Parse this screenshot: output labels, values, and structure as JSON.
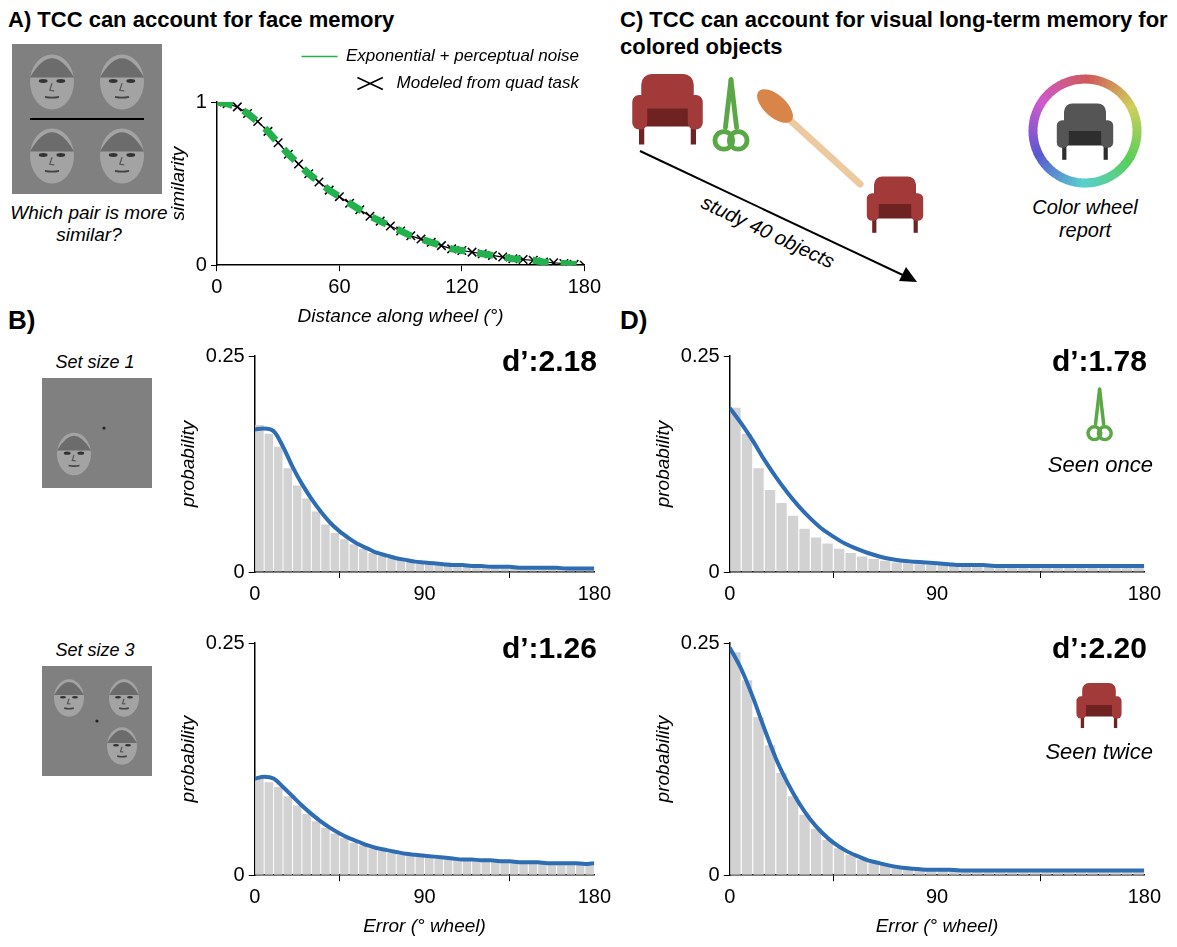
{
  "figure": {
    "A": {
      "label": "A)",
      "title": "TCC can account for face memory",
      "caption": "Which pair is more similar?"
    },
    "B": {
      "label": "B)"
    },
    "C": {
      "label": "C)",
      "title": "TCC can account for visual long-term memory for colored objects",
      "arrow_label": "study 40 objects",
      "report_label": "Color wheel report"
    },
    "D": {
      "label": "D)"
    }
  },
  "chart_data": [
    {
      "type": "line",
      "x": [
        0,
        5,
        10,
        15,
        20,
        25,
        30,
        35,
        40,
        45,
        50,
        55,
        60,
        65,
        70,
        75,
        80,
        85,
        90,
        95,
        100,
        105,
        110,
        115,
        120,
        125,
        130,
        135,
        140,
        145,
        150,
        155,
        160,
        165,
        170,
        175,
        180
      ],
      "series": [
        {
          "name": "Exponential + perceptual noise",
          "color": "#22b14c",
          "line_style": "dashed",
          "marker": "none",
          "values": [
            1,
            0.99,
            0.97,
            0.93,
            0.88,
            0.82,
            0.75,
            0.68,
            0.62,
            0.56,
            0.51,
            0.46,
            0.42,
            0.38,
            0.34,
            0.3,
            0.27,
            0.24,
            0.21,
            0.18,
            0.16,
            0.14,
            0.12,
            0.1,
            0.09,
            0.08,
            0.07,
            0.06,
            0.05,
            0.04,
            0.035,
            0.03,
            0.02,
            0.015,
            0.01,
            0.005,
            0
          ]
        },
        {
          "name": "Modeled from quad task",
          "color": "#000000",
          "line_style": "solid",
          "marker": "x",
          "values": [
            1,
            0.99,
            0.97,
            0.93,
            0.88,
            0.82,
            0.75,
            0.68,
            0.62,
            0.56,
            0.51,
            0.46,
            0.42,
            0.38,
            0.34,
            0.3,
            0.27,
            0.24,
            0.21,
            0.18,
            0.16,
            0.14,
            0.12,
            0.1,
            0.09,
            0.08,
            0.07,
            0.06,
            0.05,
            0.04,
            0.035,
            0.03,
            0.02,
            0.015,
            0.01,
            0.005,
            0
          ]
        }
      ],
      "x_label": "Distance along wheel (°)",
      "y_label": "similarity",
      "xlim": [
        0,
        180
      ],
      "xticks": [
        0,
        60,
        120,
        180
      ],
      "ylim": [
        0,
        1
      ],
      "yticks": [
        0,
        1
      ],
      "grid": false,
      "legend": "top"
    },
    {
      "type": "histogram",
      "annotation": "d’:2.18",
      "condition": "Set size 1",
      "bins": [
        0,
        5,
        10,
        15,
        20,
        25,
        30,
        35,
        40,
        45,
        50,
        55,
        60,
        65,
        70,
        75,
        80,
        85,
        90,
        95,
        100,
        105,
        110,
        115,
        120,
        125,
        130,
        135,
        140,
        145,
        150,
        155,
        160,
        165,
        170,
        175,
        180
      ],
      "counts": [
        0.17,
        0.16,
        0.145,
        0.12,
        0.1,
        0.085,
        0.07,
        0.055,
        0.045,
        0.038,
        0.032,
        0.027,
        0.022,
        0.019,
        0.016,
        0.014,
        0.012,
        0.011,
        0.01,
        0.009,
        0.008,
        0.008,
        0.007,
        0.007,
        0.006,
        0.006,
        0.006,
        0.005,
        0.005,
        0.005,
        0.005,
        0.004,
        0.004,
        0.004,
        0.004,
        0.004
      ],
      "color": "#d2d2d2",
      "curve": {
        "color": "#2e6db4",
        "x": [
          0,
          5,
          10,
          15,
          20,
          25,
          30,
          35,
          40,
          45,
          50,
          55,
          60,
          65,
          70,
          75,
          80,
          85,
          90,
          95,
          100,
          105,
          110,
          115,
          120,
          125,
          130,
          135,
          140,
          145,
          150,
          155,
          160,
          165,
          170,
          175,
          180
        ],
        "values": [
          0.165,
          0.166,
          0.163,
          0.145,
          0.122,
          0.102,
          0.085,
          0.07,
          0.057,
          0.047,
          0.039,
          0.032,
          0.027,
          0.022,
          0.019,
          0.016,
          0.014,
          0.012,
          0.011,
          0.01,
          0.009,
          0.008,
          0.008,
          0.007,
          0.007,
          0.006,
          0.006,
          0.006,
          0.005,
          0.005,
          0.005,
          0.005,
          0.005,
          0.004,
          0.004,
          0.004,
          0.004
        ]
      },
      "y_label": "probability",
      "xlim": [
        0,
        180
      ],
      "xticks": [
        0,
        90,
        180
      ],
      "ylim": [
        0,
        0.25
      ],
      "yticks": [
        0,
        0.25
      ],
      "grid": false
    },
    {
      "type": "histogram",
      "annotation": "d’:1.26",
      "condition": "Set size 3",
      "bins": [
        0,
        5,
        10,
        15,
        20,
        25,
        30,
        35,
        40,
        45,
        50,
        55,
        60,
        65,
        70,
        75,
        80,
        85,
        90,
        95,
        100,
        105,
        110,
        115,
        120,
        125,
        130,
        135,
        140,
        145,
        150,
        155,
        160,
        165,
        170,
        175,
        180
      ],
      "counts": [
        0.105,
        0.1,
        0.095,
        0.085,
        0.075,
        0.066,
        0.058,
        0.051,
        0.045,
        0.04,
        0.035,
        0.032,
        0.029,
        0.026,
        0.024,
        0.022,
        0.021,
        0.02,
        0.019,
        0.018,
        0.017,
        0.016,
        0.016,
        0.015,
        0.015,
        0.014,
        0.014,
        0.013,
        0.013,
        0.013,
        0.012,
        0.012,
        0.012,
        0.012,
        0.011,
        0.011
      ],
      "color": "#d2d2d2",
      "curve": {
        "color": "#2e6db4",
        "x": [
          0,
          5,
          10,
          15,
          20,
          25,
          30,
          35,
          40,
          45,
          50,
          55,
          60,
          65,
          70,
          75,
          80,
          85,
          90,
          95,
          100,
          105,
          110,
          115,
          120,
          125,
          130,
          135,
          140,
          145,
          150,
          155,
          160,
          165,
          170,
          175,
          180
        ],
        "values": [
          0.104,
          0.106,
          0.104,
          0.095,
          0.085,
          0.075,
          0.066,
          0.058,
          0.051,
          0.045,
          0.04,
          0.036,
          0.032,
          0.029,
          0.027,
          0.025,
          0.023,
          0.022,
          0.021,
          0.02,
          0.019,
          0.018,
          0.017,
          0.017,
          0.016,
          0.016,
          0.015,
          0.015,
          0.014,
          0.014,
          0.014,
          0.013,
          0.013,
          0.013,
          0.013,
          0.012,
          0.013
        ]
      },
      "x_label": "Error (° wheel)",
      "y_label": "probability",
      "xlim": [
        0,
        180
      ],
      "xticks": [
        0,
        90,
        180
      ],
      "ylim": [
        0,
        0.25
      ],
      "yticks": [
        0,
        0.25
      ],
      "grid": false
    },
    {
      "type": "histogram",
      "annotation": "d’:1.78",
      "condition": "Seen once",
      "bins": [
        0,
        5,
        10,
        15,
        20,
        25,
        30,
        35,
        40,
        45,
        50,
        55,
        60,
        65,
        70,
        75,
        80,
        85,
        90,
        95,
        100,
        105,
        110,
        115,
        120,
        125,
        130,
        135,
        140,
        145,
        150,
        155,
        160,
        165,
        170,
        175,
        180
      ],
      "counts": [
        0.19,
        0.16,
        0.12,
        0.095,
        0.08,
        0.065,
        0.05,
        0.04,
        0.033,
        0.027,
        0.022,
        0.018,
        0.015,
        0.013,
        0.011,
        0.01,
        0.009,
        0.008,
        0.008,
        0.007,
        0.007,
        0.007,
        0.006,
        0.006,
        0.006,
        0.006,
        0.006,
        0.006,
        0.006,
        0.006,
        0.006,
        0.006,
        0.006,
        0.006,
        0.006,
        0.006
      ],
      "color": "#d2d2d2",
      "curve": {
        "color": "#2e6db4",
        "x": [
          0,
          5,
          10,
          15,
          20,
          25,
          30,
          35,
          40,
          45,
          50,
          55,
          60,
          65,
          70,
          75,
          80,
          85,
          90,
          95,
          100,
          105,
          110,
          115,
          120,
          125,
          130,
          135,
          140,
          145,
          150,
          155,
          160,
          165,
          170,
          175,
          180
        ],
        "values": [
          0.19,
          0.172,
          0.152,
          0.13,
          0.11,
          0.092,
          0.076,
          0.062,
          0.05,
          0.041,
          0.033,
          0.027,
          0.022,
          0.018,
          0.015,
          0.013,
          0.012,
          0.011,
          0.01,
          0.009,
          0.008,
          0.008,
          0.008,
          0.007,
          0.007,
          0.007,
          0.007,
          0.007,
          0.007,
          0.007,
          0.007,
          0.007,
          0.007,
          0.007,
          0.007,
          0.007,
          0.007
        ]
      },
      "y_label": "probability",
      "xlim": [
        0,
        180
      ],
      "xticks": [
        0,
        90,
        180
      ],
      "ylim": [
        0,
        0.25
      ],
      "yticks": [
        0,
        0.25
      ],
      "grid": false
    },
    {
      "type": "histogram",
      "annotation": "d’:2.20",
      "condition": "Seen twice",
      "bins": [
        0,
        5,
        10,
        15,
        20,
        25,
        30,
        35,
        40,
        45,
        50,
        55,
        60,
        65,
        70,
        75,
        80,
        85,
        90,
        95,
        100,
        105,
        110,
        115,
        120,
        125,
        130,
        135,
        140,
        145,
        150,
        155,
        160,
        165,
        170,
        175,
        180
      ],
      "counts": [
        0.24,
        0.21,
        0.17,
        0.14,
        0.11,
        0.085,
        0.065,
        0.05,
        0.038,
        0.029,
        0.022,
        0.017,
        0.013,
        0.011,
        0.009,
        0.008,
        0.007,
        0.006,
        0.006,
        0.006,
        0.005,
        0.005,
        0.005,
        0.005,
        0.005,
        0.005,
        0.005,
        0.005,
        0.005,
        0.005,
        0.005,
        0.005,
        0.005,
        0.005,
        0.005,
        0.005
      ],
      "color": "#d2d2d2",
      "curve": {
        "color": "#2e6db4",
        "x": [
          0,
          5,
          10,
          15,
          20,
          25,
          30,
          35,
          40,
          45,
          50,
          55,
          60,
          65,
          70,
          75,
          80,
          85,
          90,
          95,
          100,
          105,
          110,
          115,
          120,
          125,
          130,
          135,
          140,
          145,
          150,
          155,
          160,
          165,
          170,
          175,
          180
        ],
        "values": [
          0.245,
          0.222,
          0.192,
          0.158,
          0.126,
          0.1,
          0.078,
          0.06,
          0.046,
          0.035,
          0.027,
          0.021,
          0.016,
          0.013,
          0.01,
          0.008,
          0.007,
          0.006,
          0.006,
          0.006,
          0.005,
          0.005,
          0.005,
          0.005,
          0.005,
          0.005,
          0.005,
          0.005,
          0.005,
          0.005,
          0.005,
          0.005,
          0.005,
          0.005,
          0.005,
          0.005,
          0.005
        ]
      },
      "x_label": "Error (° wheel)",
      "y_label": "probability",
      "xlim": [
        0,
        180
      ],
      "xticks": [
        0,
        90,
        180
      ],
      "ylim": [
        0,
        0.25
      ],
      "yticks": [
        0,
        0.25
      ],
      "grid": false
    }
  ]
}
